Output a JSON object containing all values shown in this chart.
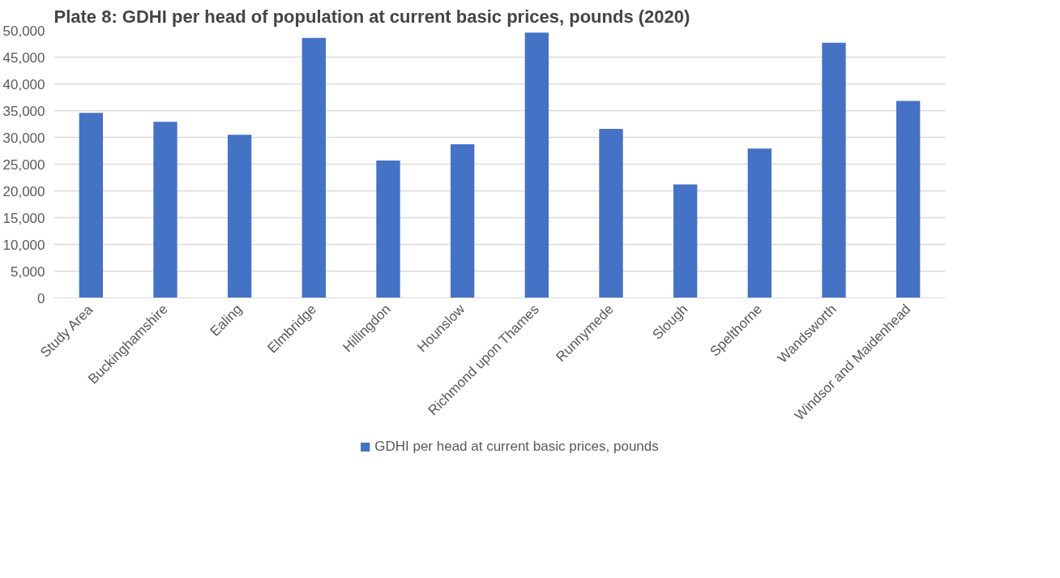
{
  "chart_data": {
    "type": "bar",
    "title": "Plate 8: GDHI per head of population at current basic prices, pounds (2020)",
    "categories": [
      "Study Area",
      "Buckinghamshire",
      "Ealing",
      "Elmbridge",
      "Hillingdon",
      "Hounslow",
      "Richmond upon Thames",
      "Runnymede",
      "Slough",
      "Spelthorne",
      "Wandsworth",
      "Windsor and Maidenhead"
    ],
    "series": [
      {
        "name": "GDHI per head at current basic prices, pounds",
        "color": "#4472c4",
        "values": [
          34600,
          32900,
          30500,
          48600,
          25700,
          28700,
          49600,
          31600,
          21200,
          27900,
          47700,
          36800
        ]
      }
    ],
    "ylim": [
      0,
      50000
    ],
    "yticks": [
      0,
      {
        "value": 5000,
        "label": "5,000"
      },
      {
        "value": 10000,
        "label": "10,000"
      },
      {
        "value": 15000,
        "label": "15,000"
      },
      {
        "value": 20000,
        "label": "20,000"
      },
      {
        "value": 25000,
        "label": "25,000"
      },
      {
        "value": 30000,
        "label": "30,000"
      },
      {
        "value": 35000,
        "label": "35,000"
      },
      {
        "value": 40000,
        "label": "40,000"
      },
      {
        "value": 45000,
        "label": "45,000"
      },
      {
        "value": 50000,
        "label": "50,000"
      }
    ],
    "grid": "y",
    "legend": "bottom"
  }
}
